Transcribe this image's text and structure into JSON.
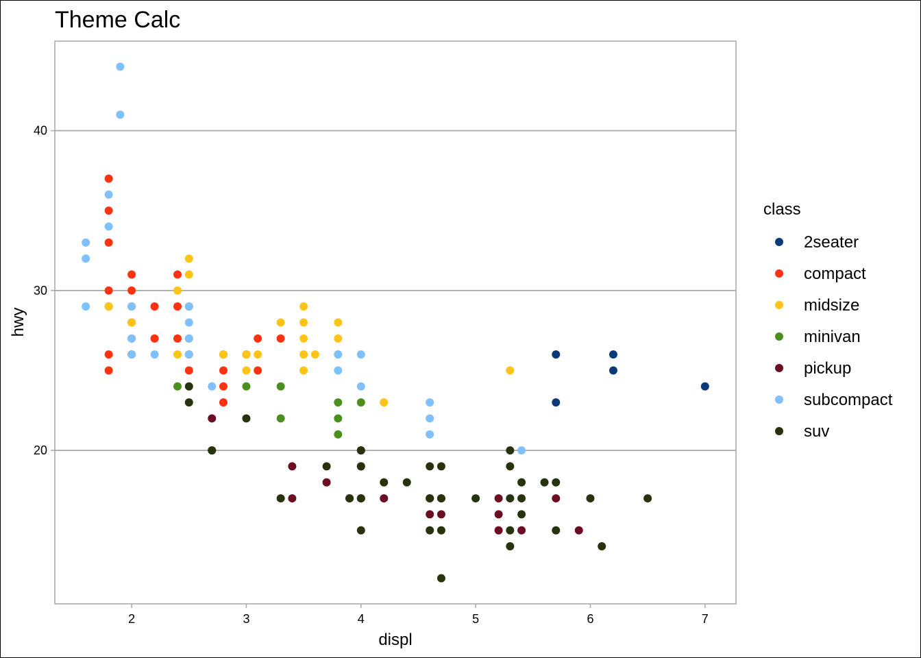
{
  "chart_data": {
    "type": "scatter",
    "title": "Theme Calc",
    "xlabel": "displ",
    "ylabel": "hwy",
    "xlim": [
      1.33,
      7.27
    ],
    "ylim": [
      10.4,
      45.6
    ],
    "x_ticks": [
      2,
      3,
      4,
      5,
      6,
      7
    ],
    "y_ticks": [
      20,
      30,
      40
    ],
    "grid": "horizontal-major",
    "legend": {
      "title": "class",
      "position": "right"
    },
    "series": [
      {
        "name": "2seater",
        "color": "#0b3a78",
        "points": [
          [
            5.7,
            26
          ],
          [
            5.7,
            23
          ],
          [
            6.2,
            26
          ],
          [
            6.2,
            25
          ],
          [
            7.0,
            24
          ]
        ]
      },
      {
        "name": "compact",
        "color": "#ff3311",
        "points": [
          [
            1.8,
            37
          ],
          [
            1.8,
            35
          ],
          [
            1.8,
            33
          ],
          [
            1.8,
            30
          ],
          [
            1.8,
            29
          ],
          [
            1.8,
            26
          ],
          [
            1.8,
            25
          ],
          [
            2.0,
            31
          ],
          [
            2.0,
            30
          ],
          [
            2.0,
            29
          ],
          [
            2.0,
            28
          ],
          [
            2.0,
            27
          ],
          [
            2.0,
            26
          ],
          [
            2.2,
            29
          ],
          [
            2.2,
            27
          ],
          [
            2.4,
            31
          ],
          [
            2.4,
            29
          ],
          [
            2.4,
            27
          ],
          [
            2.5,
            29
          ],
          [
            2.5,
            27
          ],
          [
            2.5,
            26
          ],
          [
            2.5,
            25
          ],
          [
            2.8,
            26
          ],
          [
            2.8,
            25
          ],
          [
            2.8,
            24
          ],
          [
            2.8,
            23
          ],
          [
            3.0,
            26
          ],
          [
            3.1,
            27
          ],
          [
            3.1,
            25
          ],
          [
            3.3,
            27
          ]
        ]
      },
      {
        "name": "midsize",
        "color": "#ffc41a",
        "points": [
          [
            1.8,
            29
          ],
          [
            2.0,
            29
          ],
          [
            2.0,
            28
          ],
          [
            2.0,
            27
          ],
          [
            2.4,
            30
          ],
          [
            2.4,
            26
          ],
          [
            2.5,
            32
          ],
          [
            2.5,
            31
          ],
          [
            2.5,
            29
          ],
          [
            2.5,
            26
          ],
          [
            2.8,
            26
          ],
          [
            3.0,
            26
          ],
          [
            3.0,
            25
          ],
          [
            3.1,
            26
          ],
          [
            3.3,
            28
          ],
          [
            3.5,
            29
          ],
          [
            3.5,
            28
          ],
          [
            3.5,
            27
          ],
          [
            3.5,
            26
          ],
          [
            3.5,
            25
          ],
          [
            3.6,
            26
          ],
          [
            3.8,
            28
          ],
          [
            3.8,
            27
          ],
          [
            3.8,
            26
          ],
          [
            4.2,
            23
          ],
          [
            5.3,
            25
          ]
        ]
      },
      {
        "name": "minivan",
        "color": "#4b8f1f",
        "points": [
          [
            2.4,
            24
          ],
          [
            3.0,
            24
          ],
          [
            3.3,
            24
          ],
          [
            3.3,
            22
          ],
          [
            3.8,
            23
          ],
          [
            3.8,
            22
          ],
          [
            3.8,
            21
          ],
          [
            4.0,
            23
          ]
        ]
      },
      {
        "name": "pickup",
        "color": "#6b0e24",
        "points": [
          [
            2.7,
            22
          ],
          [
            2.7,
            20
          ],
          [
            3.4,
            19
          ],
          [
            3.4,
            17
          ],
          [
            3.7,
            18
          ],
          [
            3.9,
            17
          ],
          [
            4.0,
            20
          ],
          [
            4.0,
            19
          ],
          [
            4.0,
            17
          ],
          [
            4.2,
            17
          ],
          [
            4.6,
            17
          ],
          [
            4.6,
            16
          ],
          [
            4.7,
            17
          ],
          [
            4.7,
            16
          ],
          [
            5.2,
            17
          ],
          [
            5.2,
            16
          ],
          [
            5.2,
            15
          ],
          [
            5.4,
            15
          ],
          [
            5.7,
            17
          ],
          [
            5.9,
            15
          ]
        ]
      },
      {
        "name": "subcompact",
        "color": "#7fc0ff",
        "points": [
          [
            1.6,
            33
          ],
          [
            1.6,
            32
          ],
          [
            1.6,
            29
          ],
          [
            1.8,
            36
          ],
          [
            1.8,
            34
          ],
          [
            1.9,
            44
          ],
          [
            1.9,
            41
          ],
          [
            2.0,
            29
          ],
          [
            2.0,
            27
          ],
          [
            2.0,
            26
          ],
          [
            2.2,
            26
          ],
          [
            2.5,
            29
          ],
          [
            2.5,
            28
          ],
          [
            2.5,
            27
          ],
          [
            2.5,
            26
          ],
          [
            2.7,
            24
          ],
          [
            3.8,
            26
          ],
          [
            3.8,
            25
          ],
          [
            4.0,
            26
          ],
          [
            4.0,
            24
          ],
          [
            4.6,
            23
          ],
          [
            4.6,
            22
          ],
          [
            4.6,
            21
          ],
          [
            5.4,
            20
          ]
        ]
      },
      {
        "name": "suv",
        "color": "#26330d",
        "points": [
          [
            2.5,
            24
          ],
          [
            2.5,
            23
          ],
          [
            2.7,
            20
          ],
          [
            3.0,
            22
          ],
          [
            3.3,
            17
          ],
          [
            3.7,
            19
          ],
          [
            3.9,
            17
          ],
          [
            4.0,
            20
          ],
          [
            4.0,
            19
          ],
          [
            4.0,
            17
          ],
          [
            4.0,
            15
          ],
          [
            4.2,
            18
          ],
          [
            4.4,
            18
          ],
          [
            4.6,
            19
          ],
          [
            4.6,
            17
          ],
          [
            4.6,
            15
          ],
          [
            4.7,
            19
          ],
          [
            4.7,
            17
          ],
          [
            4.7,
            15
          ],
          [
            4.7,
            12
          ],
          [
            5.0,
            17
          ],
          [
            5.3,
            20
          ],
          [
            5.3,
            19
          ],
          [
            5.3,
            17
          ],
          [
            5.3,
            15
          ],
          [
            5.3,
            14
          ],
          [
            5.4,
            18
          ],
          [
            5.4,
            17
          ],
          [
            5.4,
            16
          ],
          [
            5.6,
            18
          ],
          [
            5.7,
            18
          ],
          [
            5.7,
            15
          ],
          [
            6.0,
            17
          ],
          [
            6.1,
            14
          ],
          [
            6.5,
            17
          ]
        ]
      }
    ]
  }
}
